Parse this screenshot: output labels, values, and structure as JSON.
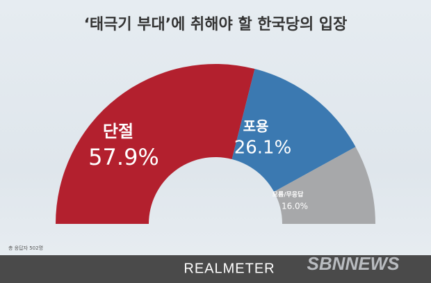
{
  "chart_data": {
    "type": "semidonut",
    "title": "‘태극기 부대’에 취해야 할 한국당의 입장",
    "categories": [
      "단절",
      "포용",
      "모름/무응답"
    ],
    "values": [
      57.9,
      26.1,
      16.0
    ],
    "value_labels": [
      "57.9%",
      "26.1%",
      "16.0%"
    ],
    "colors": [
      "#b3202e",
      "#3b79b1",
      "#a7a8aa"
    ],
    "note": "총 응답자 502명",
    "source": "REALMETER",
    "watermark": "SBNNEWS"
  }
}
